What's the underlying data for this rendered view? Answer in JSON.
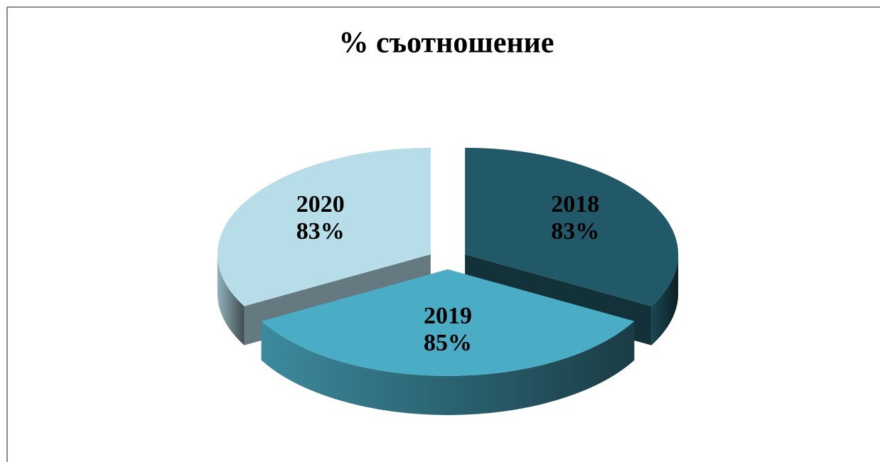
{
  "chart_data": {
    "type": "pie",
    "title": "% съотношение",
    "categories": [
      "2018",
      "2019",
      "2020"
    ],
    "values": [
      83,
      85,
      83
    ],
    "value_labels": [
      "83%",
      "85%",
      "83%"
    ],
    "colors": [
      "#215968",
      "#4bacc6",
      "#b7dde8"
    ]
  }
}
